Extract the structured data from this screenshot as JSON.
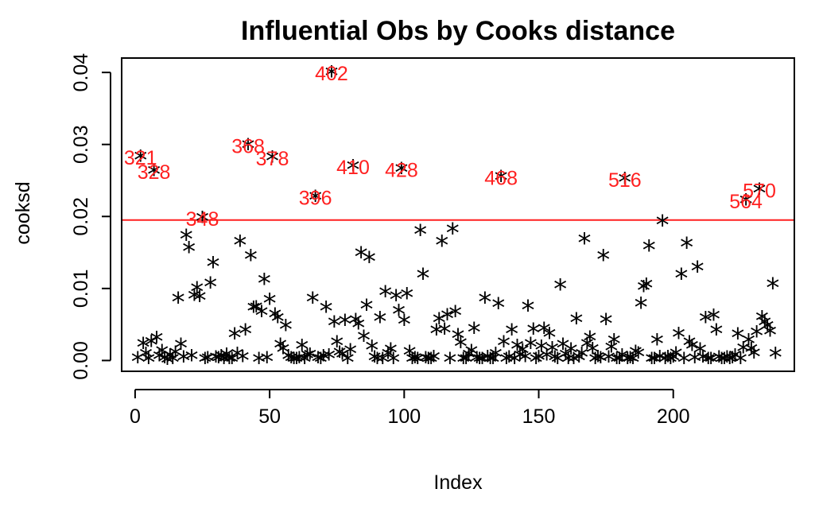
{
  "chart_data": {
    "type": "scatter",
    "title": "Influential Obs by Cooks distance",
    "xlabel": "Index",
    "ylabel": "cooksd",
    "xlim": [
      -5,
      245
    ],
    "ylim": [
      -0.0015,
      0.042
    ],
    "xticks": [
      "0",
      "50",
      "100",
      "150",
      "200"
    ],
    "yticks": [
      "0.00",
      "0.01",
      "0.02",
      "0.03",
      "0.04"
    ],
    "grid": false,
    "marker": "*",
    "threshold": {
      "y": 0.0195,
      "color": "#ff2020"
    },
    "colors": {
      "points": "#000000",
      "labels": "#ff2020"
    },
    "points": [
      [
        1,
        0.0002
      ],
      [
        2,
        0.0282
      ],
      [
        3,
        0.0022
      ],
      [
        4,
        0.0008
      ],
      [
        5,
        0.0001
      ],
      [
        6,
        0.0025
      ],
      [
        7,
        0.0262
      ],
      [
        8,
        0.003
      ],
      [
        9,
        0.0005
      ],
      [
        10,
        0.0012
      ],
      [
        11,
        0.0002
      ],
      [
        12,
        0.0
      ],
      [
        13,
        0.0006
      ],
      [
        14,
        0.0001
      ],
      [
        15,
        0.001
      ],
      [
        16,
        0.0085
      ],
      [
        17,
        0.0021
      ],
      [
        18,
        0.0003
      ],
      [
        19,
        0.0172
      ],
      [
        20,
        0.0155
      ],
      [
        21,
        0.0005
      ],
      [
        22,
        0.0089
      ],
      [
        23,
        0.0099
      ],
      [
        24,
        0.0087
      ],
      [
        25,
        0.0197
      ],
      [
        26,
        0.0001
      ],
      [
        27,
        0.0002
      ],
      [
        28,
        0.0106
      ],
      [
        29,
        0.0134
      ],
      [
        30,
        0.0003
      ],
      [
        31,
        0.0002
      ],
      [
        32,
        0.0005
      ],
      [
        33,
        0.0001
      ],
      [
        34,
        0.0007
      ],
      [
        35,
        0.0001
      ],
      [
        36,
        0.0001
      ],
      [
        37,
        0.0035
      ],
      [
        38,
        0.0008
      ],
      [
        39,
        0.0164
      ],
      [
        40,
        0.0004
      ],
      [
        41,
        0.0041
      ],
      [
        42,
        0.0298
      ],
      [
        43,
        0.0144
      ],
      [
        44,
        0.0072
      ],
      [
        45,
        0.0073
      ],
      [
        46,
        0.0001
      ],
      [
        47,
        0.0066
      ],
      [
        48,
        0.0111
      ],
      [
        49,
        0.0002
      ],
      [
        50,
        0.0083
      ],
      [
        51,
        0.0281
      ],
      [
        52,
        0.0063
      ],
      [
        53,
        0.0058
      ],
      [
        54,
        0.0021
      ],
      [
        55,
        0.0015
      ],
      [
        56,
        0.0047
      ],
      [
        57,
        0.0005
      ],
      [
        58,
        0.0002
      ],
      [
        59,
        0.0001
      ],
      [
        60,
        0.0001
      ],
      [
        61,
        0.0002
      ],
      [
        62,
        0.0019
      ],
      [
        63,
        0.0001
      ],
      [
        64,
        0.0006
      ],
      [
        65,
        0.0007
      ],
      [
        66,
        0.0085
      ],
      [
        67,
        0.0226
      ],
      [
        68,
        0.0002
      ],
      [
        69,
        0.0001
      ],
      [
        70,
        0.0005
      ],
      [
        71,
        0.0072
      ],
      [
        72,
        0.0006
      ],
      [
        73,
        0.0399
      ],
      [
        74,
        0.0052
      ],
      [
        75,
        0.0024
      ],
      [
        76,
        0.001
      ],
      [
        77,
        0.0007
      ],
      [
        78,
        0.0054
      ],
      [
        79,
        0.0001
      ],
      [
        80,
        0.0013
      ],
      [
        81,
        0.0269
      ],
      [
        82,
        0.0055
      ],
      [
        83,
        0.0049
      ],
      [
        84,
        0.0148
      ],
      [
        85,
        0.0032
      ],
      [
        86,
        0.0075
      ],
      [
        87,
        0.0141
      ],
      [
        88,
        0.0018
      ],
      [
        89,
        0.0003
      ],
      [
        90,
        0.0001
      ],
      [
        91,
        0.0058
      ],
      [
        92,
        0.0001
      ],
      [
        93,
        0.0094
      ],
      [
        94,
        0.0008
      ],
      [
        95,
        0.0014
      ],
      [
        96,
        0.0001
      ],
      [
        97,
        0.0088
      ],
      [
        98,
        0.0068
      ],
      [
        99,
        0.0265
      ],
      [
        100,
        0.0054
      ],
      [
        101,
        0.0091
      ],
      [
        102,
        0.0011
      ],
      [
        103,
        0.0001
      ],
      [
        104,
        0.0002
      ],
      [
        105,
        0.0001
      ],
      [
        106,
        0.0179
      ],
      [
        107,
        0.0118
      ],
      [
        108,
        0.0002
      ],
      [
        109,
        0.0001
      ],
      [
        110,
        0.0001
      ],
      [
        111,
        0.0004
      ],
      [
        112,
        0.0041
      ],
      [
        113,
        0.0056
      ],
      [
        114,
        0.0164
      ],
      [
        115,
        0.0042
      ],
      [
        116,
        0.0062
      ],
      [
        117,
        0.0001
      ],
      [
        118,
        0.0181
      ],
      [
        119,
        0.0066
      ],
      [
        120,
        0.0034
      ],
      [
        121,
        0.0023
      ],
      [
        122,
        0.0001
      ],
      [
        123,
        0.0001
      ],
      [
        124,
        0.0007
      ],
      [
        125,
        0.0012
      ],
      [
        126,
        0.0043
      ],
      [
        127,
        0.0002
      ],
      [
        128,
        0.0001
      ],
      [
        129,
        0.0001
      ],
      [
        130,
        0.0085
      ],
      [
        131,
        0.0004
      ],
      [
        132,
        0.0001
      ],
      [
        133,
        0.0001
      ],
      [
        134,
        0.0008
      ],
      [
        135,
        0.0077
      ],
      [
        136,
        0.0254
      ],
      [
        137,
        0.0024
      ],
      [
        138,
        0.0001
      ],
      [
        139,
        0.0003
      ],
      [
        140,
        0.0041
      ],
      [
        141,
        0.0001
      ],
      [
        142,
        0.0019
      ],
      [
        143,
        0.0006
      ],
      [
        144,
        0.0013
      ],
      [
        145,
        0.0004
      ],
      [
        146,
        0.0074
      ],
      [
        147,
        0.0022
      ],
      [
        148,
        0.0042
      ],
      [
        149,
        0.0001
      ],
      [
        150,
        0.0004
      ],
      [
        151,
        0.0018
      ],
      [
        152,
        0.0043
      ],
      [
        153,
        0.0006
      ],
      [
        154,
        0.0036
      ],
      [
        155,
        0.0016
      ],
      [
        156,
        0.0003
      ],
      [
        157,
        0.0001
      ],
      [
        158,
        0.0103
      ],
      [
        159,
        0.0021
      ],
      [
        160,
        0.0007
      ],
      [
        161,
        0.0001
      ],
      [
        162,
        0.0014
      ],
      [
        163,
        0.0001
      ],
      [
        164,
        0.0056
      ],
      [
        165,
        0.0003
      ],
      [
        166,
        0.0008
      ],
      [
        167,
        0.0167
      ],
      [
        168,
        0.0022
      ],
      [
        169,
        0.0031
      ],
      [
        170,
        0.0015
      ],
      [
        171,
        0.0001
      ],
      [
        172,
        0.0004
      ],
      [
        173,
        0.0002
      ],
      [
        174,
        0.0144
      ],
      [
        175,
        0.0055
      ],
      [
        176,
        0.0003
      ],
      [
        177,
        0.0017
      ],
      [
        178,
        0.0027
      ],
      [
        179,
        0.0001
      ],
      [
        180,
        0.0001
      ],
      [
        181,
        0.0006
      ],
      [
        182,
        0.0251
      ],
      [
        183,
        0.0001
      ],
      [
        184,
        0.0002
      ],
      [
        185,
        0.0001
      ],
      [
        186,
        0.0011
      ],
      [
        187,
        0.0009
      ],
      [
        188,
        0.0078
      ],
      [
        189,
        0.0101
      ],
      [
        190,
        0.0104
      ],
      [
        191,
        0.0157
      ],
      [
        192,
        0.0001
      ],
      [
        193,
        0.0001
      ],
      [
        194,
        0.0027
      ],
      [
        195,
        0.0004
      ],
      [
        196,
        0.0192
      ],
      [
        197,
        0.0001
      ],
      [
        198,
        0.0004
      ],
      [
        199,
        0.0001
      ],
      [
        200,
        0.0003
      ],
      [
        201,
        0.0009
      ],
      [
        202,
        0.0036
      ],
      [
        203,
        0.0118
      ],
      [
        204,
        0.0001
      ],
      [
        205,
        0.0161
      ],
      [
        206,
        0.0024
      ],
      [
        207,
        0.0019
      ],
      [
        208,
        0.0002
      ],
      [
        209,
        0.0128
      ],
      [
        210,
        0.0014
      ],
      [
        211,
        0.0003
      ],
      [
        212,
        0.0058
      ],
      [
        213,
        0.0001
      ],
      [
        214,
        0.0001
      ],
      [
        215,
        0.0061
      ],
      [
        216,
        0.0041
      ],
      [
        217,
        0.0003
      ],
      [
        218,
        0.0001
      ],
      [
        219,
        0.0001
      ],
      [
        220,
        0.0003
      ],
      [
        221,
        0.0001
      ],
      [
        222,
        0.0002
      ],
      [
        223,
        0.0006
      ],
      [
        224,
        0.0035
      ],
      [
        225,
        0.0001
      ],
      [
        226,
        0.0016
      ],
      [
        227,
        0.0221
      ],
      [
        228,
        0.0027
      ],
      [
        229,
        0.0015
      ],
      [
        230,
        0.0009
      ],
      [
        231,
        0.0038
      ],
      [
        232,
        0.0236
      ],
      [
        233,
        0.0059
      ],
      [
        234,
        0.0052
      ],
      [
        235,
        0.0047
      ],
      [
        236,
        0.0039
      ],
      [
        237,
        0.0105
      ],
      [
        238,
        0.0008
      ]
    ],
    "annotations": [
      {
        "x": 2,
        "y": 0.0282,
        "text": "321"
      },
      {
        "x": 7,
        "y": 0.0262,
        "text": "328"
      },
      {
        "x": 25,
        "y": 0.0197,
        "text": "348"
      },
      {
        "x": 42,
        "y": 0.0298,
        "text": "368"
      },
      {
        "x": 51,
        "y": 0.0281,
        "text": "378"
      },
      {
        "x": 67,
        "y": 0.0226,
        "text": "396"
      },
      {
        "x": 73,
        "y": 0.0399,
        "text": "402"
      },
      {
        "x": 81,
        "y": 0.0269,
        "text": "410"
      },
      {
        "x": 99,
        "y": 0.0265,
        "text": "428"
      },
      {
        "x": 136,
        "y": 0.0254,
        "text": "468"
      },
      {
        "x": 182,
        "y": 0.0251,
        "text": "516"
      },
      {
        "x": 227,
        "y": 0.0221,
        "text": "564"
      },
      {
        "x": 232,
        "y": 0.0236,
        "text": "570"
      }
    ]
  }
}
